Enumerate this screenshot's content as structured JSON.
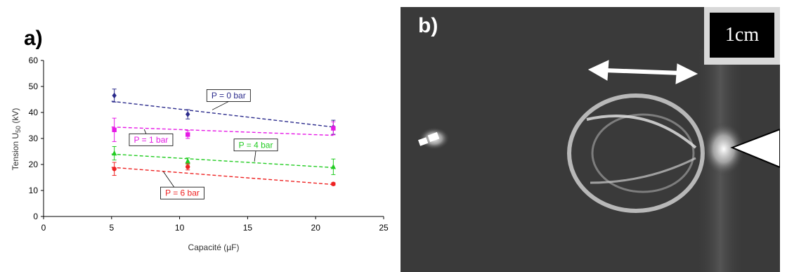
{
  "panels": {
    "a_label": "a)",
    "b_label": "b)",
    "scale_bar_label": "1cm"
  },
  "chart_data": {
    "type": "scatter",
    "title": "",
    "xlabel": "Capacité (µF)",
    "ylabel": "Tension U50 (kV)",
    "xlim": [
      0,
      25
    ],
    "ylim": [
      0,
      60
    ],
    "xticks": [
      0,
      5,
      10,
      15,
      20,
      25
    ],
    "yticks": [
      0,
      10,
      20,
      30,
      40,
      50,
      60
    ],
    "grid": false,
    "series": [
      {
        "name": "P = 0 bar",
        "color": "#2b2b8c",
        "marker": "diamond",
        "x": [
          5.2,
          10.6,
          21.3
        ],
        "y": [
          46.5,
          39.3,
          34.3
        ],
        "err": [
          2.5,
          1.8,
          2.7
        ],
        "fit": [
          [
            5,
            44.3
          ],
          [
            21.3,
            34.4
          ]
        ],
        "label_at": {
          "x": 12.0,
          "y": 46.5
        },
        "arrow_to": {
          "x": 12.4,
          "y": 41.0
        }
      },
      {
        "name": "P = 1 bar",
        "color": "#e619e6",
        "marker": "square",
        "x": [
          5.2,
          10.6,
          21.3
        ],
        "y": [
          33.3,
          31.5,
          33.9
        ],
        "err": [
          4.5,
          1.5,
          2.5
        ],
        "fit": [
          [
            5,
            34.4
          ],
          [
            21.3,
            31.2
          ]
        ],
        "label_at": {
          "x": 6.3,
          "y": 29.5
        },
        "arrow_to": {
          "x": 7.4,
          "y": 33.5
        }
      },
      {
        "name": "P = 4 bar",
        "color": "#22cc22",
        "marker": "triangle",
        "x": [
          5.2,
          10.6,
          21.3
        ],
        "y": [
          24.3,
          21.3,
          19.1
        ],
        "err": [
          2.6,
          1.2,
          3.0
        ],
        "fit": [
          [
            5,
            24.0
          ],
          [
            21.3,
            18.8
          ]
        ],
        "label_at": {
          "x": 14.0,
          "y": 27.5
        },
        "arrow_to": {
          "x": 15.5,
          "y": 21.1
        }
      },
      {
        "name": "P = 6 bar",
        "color": "#ee2222",
        "marker": "circle",
        "x": [
          5.2,
          10.6,
          21.3
        ],
        "y": [
          18.3,
          19.1,
          12.5
        ],
        "err": [
          2.5,
          1.2,
          0.5
        ],
        "fit": [
          [
            5,
            18.9
          ],
          [
            21.3,
            12.3
          ]
        ],
        "label_at": {
          "x": 8.6,
          "y": 9.0
        },
        "arrow_to": {
          "x": 8.8,
          "y": 17.3
        }
      }
    ]
  }
}
